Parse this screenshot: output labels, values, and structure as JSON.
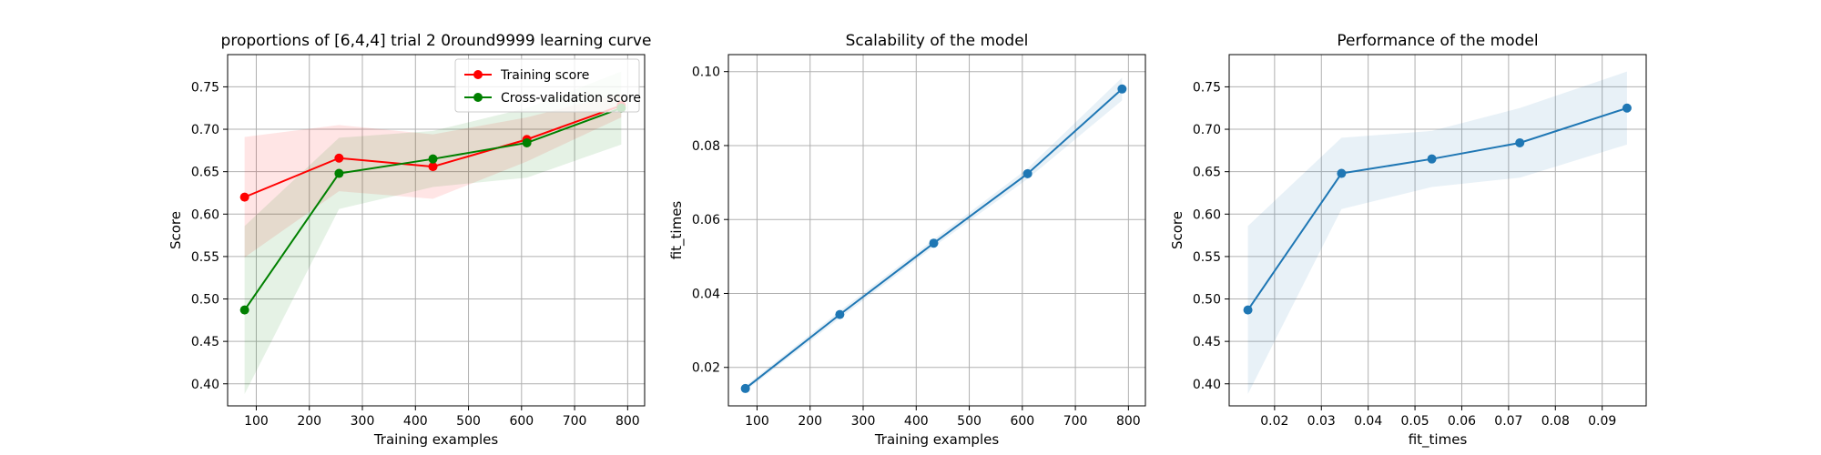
{
  "chart_data": [
    {
      "id": "learning",
      "type": "line",
      "title": "proportions of [6,4,4] trial 2 0round9999 learning curve",
      "xlabel": "Training examples",
      "ylabel": "Score",
      "xlim": [
        46,
        832
      ],
      "ylim": [
        0.374,
        0.788
      ],
      "x_ticks": [
        100,
        200,
        300,
        400,
        500,
        600,
        700,
        800
      ],
      "x_tick_labels": [
        "100",
        "200",
        "300",
        "400",
        "500",
        "600",
        "700",
        "800"
      ],
      "y_ticks": [
        0.4,
        0.45,
        0.5,
        0.55,
        0.6,
        0.65,
        0.7,
        0.75
      ],
      "y_tick_labels": [
        "0.40",
        "0.45",
        "0.50",
        "0.55",
        "0.60",
        "0.65",
        "0.70",
        "0.75"
      ],
      "grid": true,
      "legend": "top-right",
      "x": [
        78,
        256,
        433,
        610,
        788
      ],
      "series": [
        {
          "name": "Training score",
          "color": "#ff0000",
          "values": [
            0.62,
            0.666,
            0.656,
            0.688,
            0.728
          ],
          "lower": [
            0.549,
            0.627,
            0.618,
            0.662,
            0.714
          ],
          "upper": [
            0.691,
            0.705,
            0.694,
            0.714,
            0.742
          ]
        },
        {
          "name": "Cross-validation score",
          "color": "#008000",
          "values": [
            0.487,
            0.648,
            0.665,
            0.684,
            0.725
          ],
          "lower": [
            0.388,
            0.606,
            0.632,
            0.643,
            0.682
          ],
          "upper": [
            0.586,
            0.69,
            0.698,
            0.725,
            0.768
          ]
        }
      ]
    },
    {
      "id": "scalability",
      "type": "line",
      "title": "Scalability of the model",
      "xlabel": "Training examples",
      "ylabel": "fit_times",
      "xlim": [
        46,
        832
      ],
      "ylim": [
        0.0096,
        0.1046
      ],
      "x_ticks": [
        100,
        200,
        300,
        400,
        500,
        600,
        700,
        800
      ],
      "x_tick_labels": [
        "100",
        "200",
        "300",
        "400",
        "500",
        "600",
        "700",
        "800"
      ],
      "y_ticks": [
        0.02,
        0.04,
        0.06,
        0.08,
        0.1
      ],
      "y_tick_labels": [
        "0.02",
        "0.04",
        "0.06",
        "0.08",
        "0.10"
      ],
      "grid": true,
      "x": [
        78,
        256,
        433,
        610,
        788
      ],
      "series": [
        {
          "color": "#1f77b4",
          "values": [
            0.0143,
            0.0343,
            0.0536,
            0.0724,
            0.0953
          ],
          "lower": [
            0.0136,
            0.0333,
            0.0526,
            0.071,
            0.0922
          ],
          "upper": [
            0.015,
            0.0353,
            0.0546,
            0.0738,
            0.0984
          ]
        }
      ]
    },
    {
      "id": "performance",
      "type": "line",
      "title": "Performance of the model",
      "xlabel": "fit_times",
      "ylabel": "Score",
      "xlim": [
        0.0103,
        0.0994
      ],
      "ylim": [
        0.374,
        0.788
      ],
      "x_ticks": [
        0.02,
        0.03,
        0.04,
        0.05,
        0.06,
        0.07,
        0.08,
        0.09
      ],
      "x_tick_labels": [
        "0.02",
        "0.03",
        "0.04",
        "0.05",
        "0.06",
        "0.07",
        "0.08",
        "0.09"
      ],
      "y_ticks": [
        0.4,
        0.45,
        0.5,
        0.55,
        0.6,
        0.65,
        0.7,
        0.75
      ],
      "y_tick_labels": [
        "0.40",
        "0.45",
        "0.50",
        "0.55",
        "0.60",
        "0.65",
        "0.70",
        "0.75"
      ],
      "grid": true,
      "x": [
        0.0143,
        0.0343,
        0.0536,
        0.0724,
        0.0953
      ],
      "series": [
        {
          "color": "#1f77b4",
          "values": [
            0.487,
            0.648,
            0.665,
            0.684,
            0.725
          ],
          "lower": [
            0.388,
            0.606,
            0.632,
            0.643,
            0.682
          ],
          "upper": [
            0.586,
            0.69,
            0.698,
            0.725,
            0.768
          ]
        }
      ]
    }
  ]
}
